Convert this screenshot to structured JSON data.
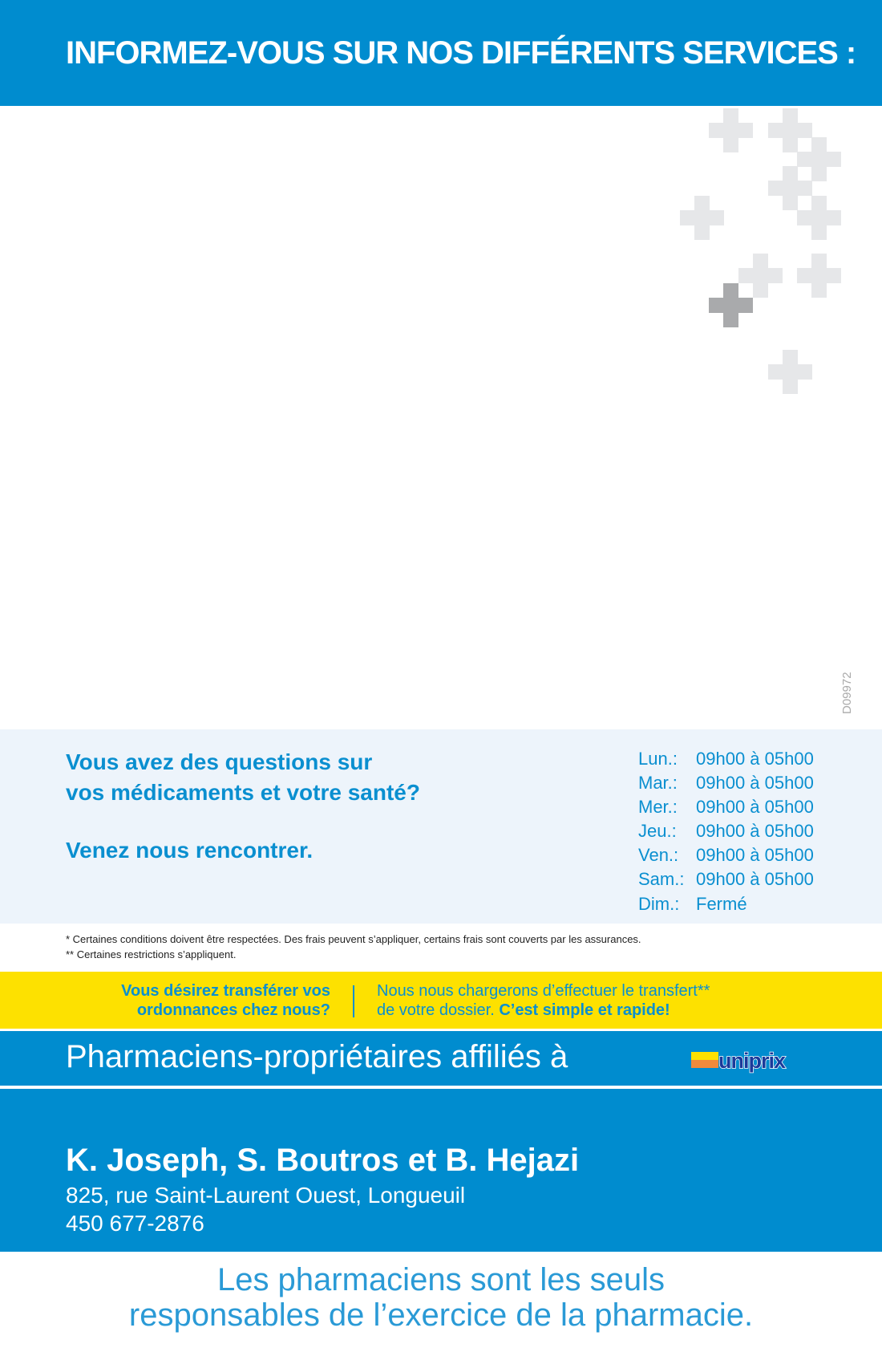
{
  "header": {
    "title": "INFORMEZ-VOUS SUR NOS DIFFÉRENTS SERVICES :"
  },
  "colors": {
    "brand_blue": "#008ccf",
    "text_blue": "#0a8fd0",
    "yellow": "#fde100",
    "info_bg": "#edf4fb",
    "cross_light": "#e6e7e9",
    "cross_dark": "#a9aaac"
  },
  "doc_code": "D09972",
  "info": {
    "line1": "Vous avez des questions sur",
    "line2": "vos médicaments et votre santé?",
    "line3": "Venez nous rencontrer."
  },
  "hours": [
    {
      "day": "Lun.:",
      "time": "09h00 à 05h00"
    },
    {
      "day": "Mar.:",
      "time": "09h00 à 05h00"
    },
    {
      "day": "Mer.:",
      "time": "09h00 à 05h00"
    },
    {
      "day": "Jeu.:",
      "time": "09h00 à 05h00"
    },
    {
      "day": "Ven.:",
      "time": "09h00 à 05h00"
    },
    {
      "day": "Sam.:",
      "time": "09h00 à 05h00"
    },
    {
      "day": "Dim.:",
      "time": "Fermé"
    }
  ],
  "notes": [
    "* Certaines conditions doivent être respectées. Des frais peuvent s’appliquer, certains frais sont couverts par les assurances.",
    "** Certaines restrictions s’appliquent."
  ],
  "transfer": {
    "left1": "Vous désirez transférer vos",
    "left2": "ordonnances chez nous?",
    "right1": "Nous nous chargerons d’effectuer le transfert**",
    "right2a": "de votre dossier. ",
    "right2b": "C’est simple et rapide!"
  },
  "affiliation": {
    "text": "Pharmaciens-propriétaires affiliés à",
    "logo": "uniprix"
  },
  "pharmacy": {
    "name": "K. Joseph, S. Boutros et B. Hejazi",
    "address": "825, rue Saint-Laurent Ouest, Longueuil",
    "phone": "450 677-2876"
  },
  "footer": {
    "line1": "Les pharmaciens sont les seuls",
    "line2": "responsables de l’exercice de la pharmacie."
  }
}
